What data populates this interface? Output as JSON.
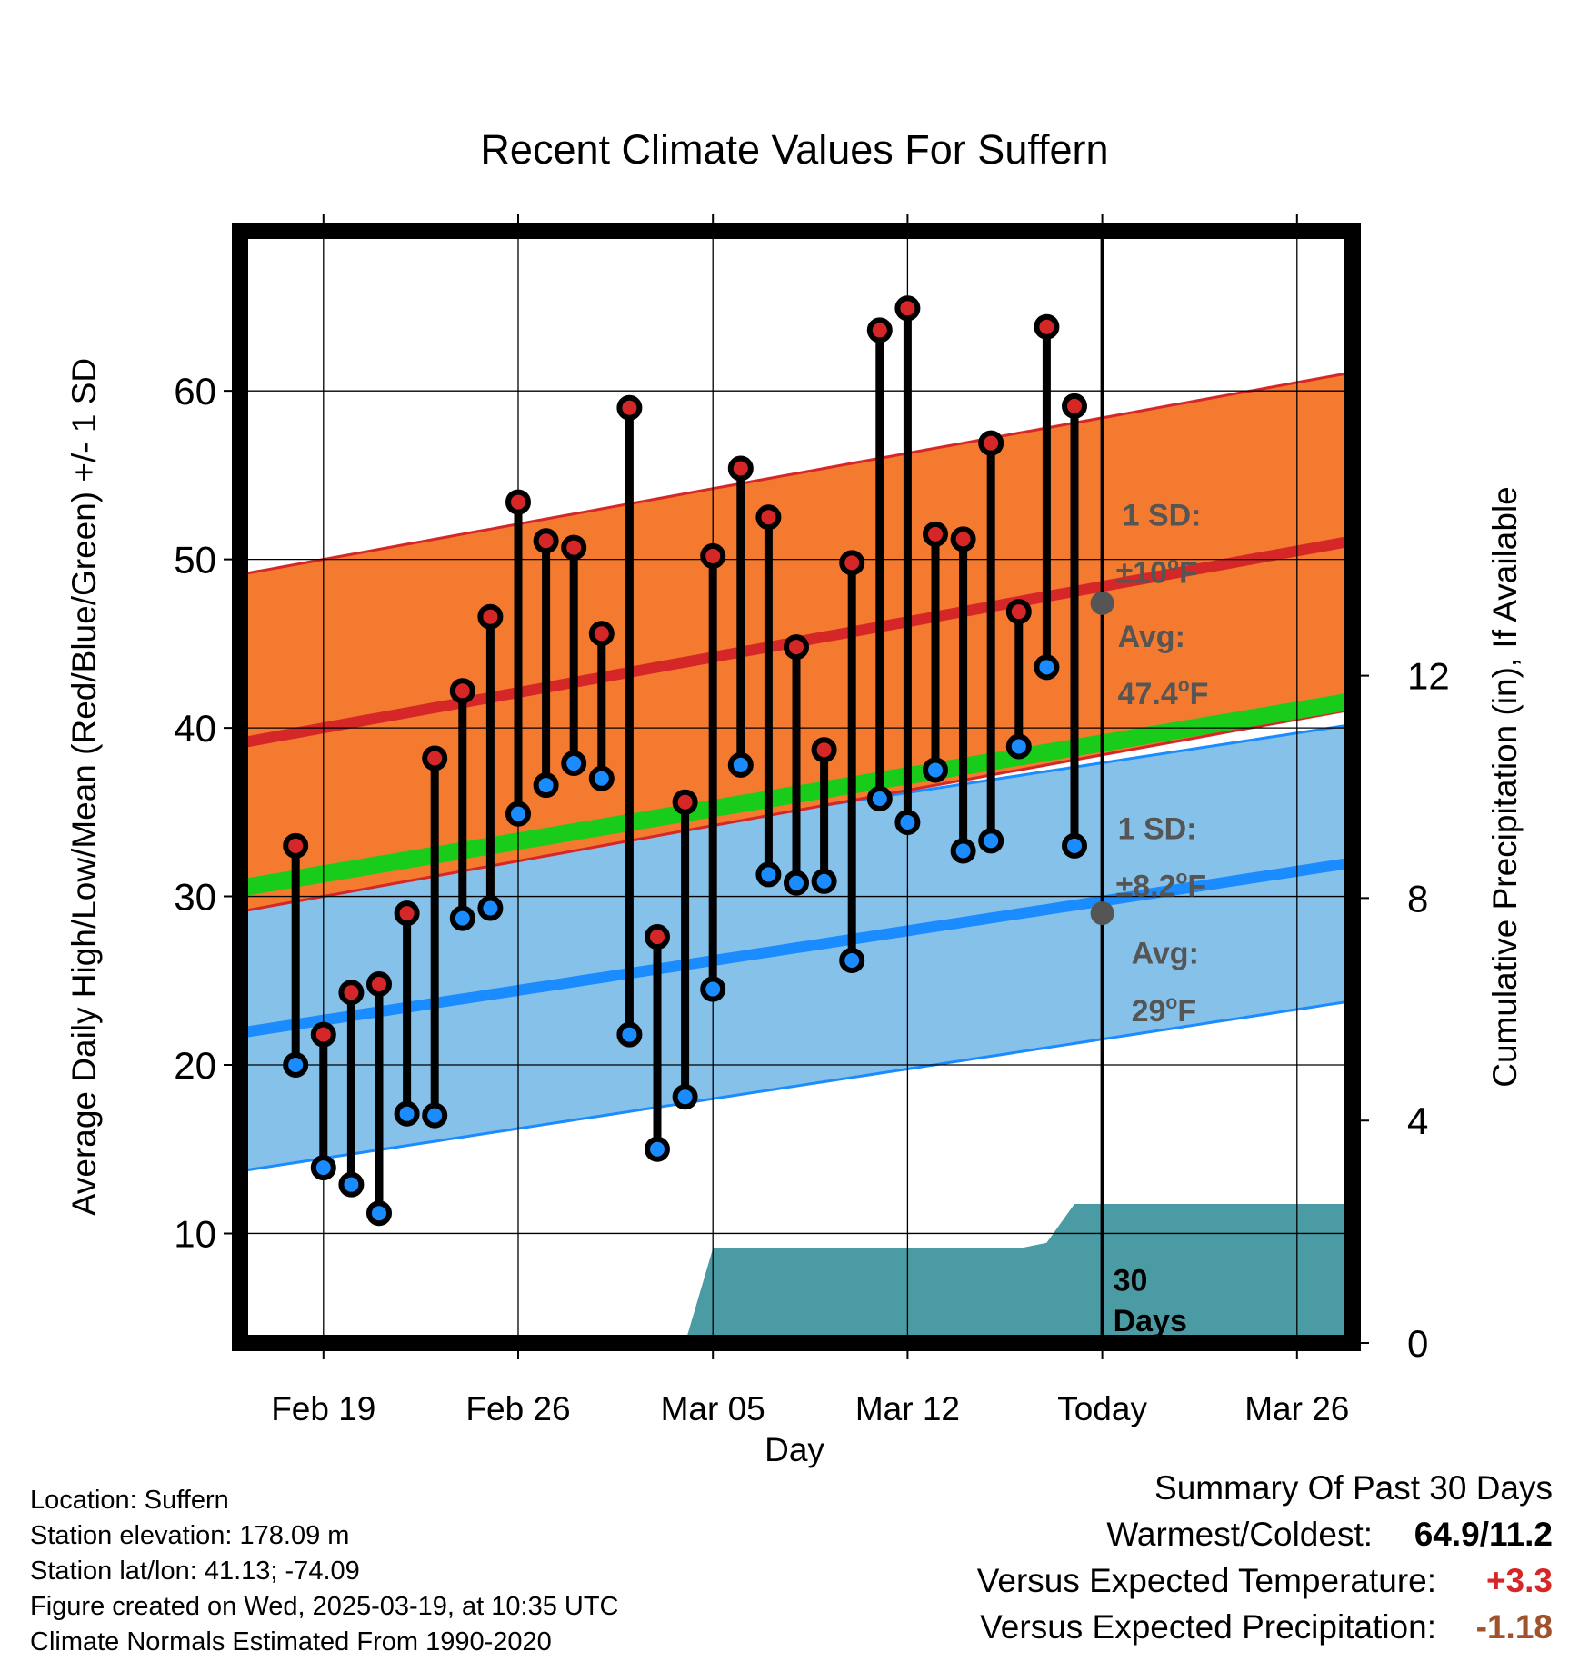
{
  "chart_data": {
    "type": "line",
    "title": "Recent Climate Values For Suffern",
    "xlabel": "Day",
    "ylabel": "Average Daily High/Low/Mean (Red/Blue/Green) +/- 1 SD",
    "y2label": "Cumulative Precipitation (in), If Available",
    "x_range": [
      "2025-02-16",
      "2025-03-28"
    ],
    "ylim": [
      3.5,
      69.5
    ],
    "y2lim": [
      0,
      20
    ],
    "yticks": [
      10,
      20,
      30,
      40,
      50,
      60
    ],
    "y2ticks": [
      0,
      4,
      8,
      12
    ],
    "xticks": [
      {
        "date": "2025-02-19",
        "label": "Feb 19"
      },
      {
        "date": "2025-02-26",
        "label": "Feb 26"
      },
      {
        "date": "2025-03-05",
        "label": "Mar 05"
      },
      {
        "date": "2025-03-12",
        "label": "Mar 12"
      },
      {
        "date": "2025-03-19",
        "label": "Today"
      },
      {
        "date": "2025-03-26",
        "label": "Mar 26"
      }
    ],
    "grid": true,
    "today": "2025-03-19",
    "days": [
      "2025-02-18",
      "2025-02-19",
      "2025-02-20",
      "2025-02-21",
      "2025-02-22",
      "2025-02-23",
      "2025-02-24",
      "2025-02-25",
      "2025-02-26",
      "2025-02-27",
      "2025-02-28",
      "2025-03-01",
      "2025-03-02",
      "2025-03-03",
      "2025-03-04",
      "2025-03-05",
      "2025-03-06",
      "2025-03-07",
      "2025-03-08",
      "2025-03-09",
      "2025-03-10",
      "2025-03-11",
      "2025-03-12",
      "2025-03-13",
      "2025-03-14",
      "2025-03-15",
      "2025-03-16",
      "2025-03-17",
      "2025-03-18"
    ],
    "highs": [
      33.0,
      21.8,
      24.3,
      24.8,
      29.0,
      38.2,
      42.2,
      46.6,
      53.4,
      51.1,
      50.7,
      45.6,
      59.0,
      27.6,
      35.6,
      50.2,
      55.4,
      52.5,
      44.8,
      38.7,
      49.8,
      63.6,
      64.9,
      51.5,
      51.2,
      56.9,
      46.9,
      63.8,
      59.1
    ],
    "lows": [
      20.0,
      13.9,
      12.9,
      11.2,
      17.1,
      17.0,
      28.7,
      29.3,
      34.9,
      36.6,
      37.9,
      37.0,
      21.8,
      15.0,
      18.1,
      24.5,
      37.8,
      31.3,
      30.8,
      30.9,
      26.2,
      35.8,
      34.4,
      37.5,
      32.7,
      33.3,
      38.9,
      43.6,
      33.0
    ],
    "extra_days": [
      "2025-03-18"
    ],
    "normals": {
      "series": [
        {
          "name": "High",
          "color": "#d62728",
          "start": 39.1,
          "end": 51.1,
          "sd": 10,
          "band_color": "#f47a2f"
        },
        {
          "name": "Low",
          "color": "#1a8cff",
          "start": 21.9,
          "end": 32.0,
          "sd": 8.2,
          "band_color": "#85c1e9"
        },
        {
          "name": "Mean",
          "color": "#1acc1a",
          "start": 30.5,
          "end": 41.6
        }
      ],
      "last_day_low": 31.3
    },
    "precip": {
      "color": "#4a9ba3",
      "points": [
        [
          "2025-02-16",
          0
        ],
        [
          "2025-03-04",
          0
        ],
        [
          "2025-03-05",
          1.7
        ],
        [
          "2025-03-16",
          1.7
        ],
        [
          "2025-03-17",
          1.8
        ],
        [
          "2025-03-18",
          2.5
        ],
        [
          "2025-03-28",
          2.5
        ]
      ]
    },
    "annotations": {
      "high_sd": [
        "1 SD:",
        "±10°F"
      ],
      "high_avg": [
        "Avg:",
        "47.4°F"
      ],
      "high_avg_value": 47.4,
      "low_sd": [
        "1 SD:",
        "±8.2°F"
      ],
      "low_avg": [
        "Avg:",
        "29°F"
      ],
      "low_avg_value": 29,
      "period": [
        "30",
        "Days"
      ]
    }
  },
  "info": {
    "location": "Location: Suffern",
    "elevation": "Station elevation: 178.09 m",
    "latlon": "Station lat/lon: 41.13; -74.09",
    "created": "Figure created on Wed, 2025-03-19, at 10:35 UTC",
    "normals": "Climate Normals Estimated From 1990-2020"
  },
  "summary": {
    "title": "Summary Of Past 30 Days",
    "warmest_label": "Warmest/Coldest:",
    "warmest_value": "64.9/11.2",
    "temp_label": "Versus Expected Temperature:",
    "temp_value": "+3.3",
    "temp_color": "#d62728",
    "precip_label": "Versus Expected Precipitation:",
    "precip_value": "-1.18",
    "precip_color": "#a0522d"
  }
}
